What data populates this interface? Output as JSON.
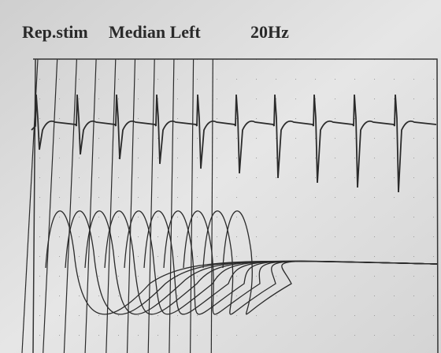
{
  "header": {
    "title": [
      "Rep.stim",
      "Median Left",
      "20Hz"
    ]
  }
}
